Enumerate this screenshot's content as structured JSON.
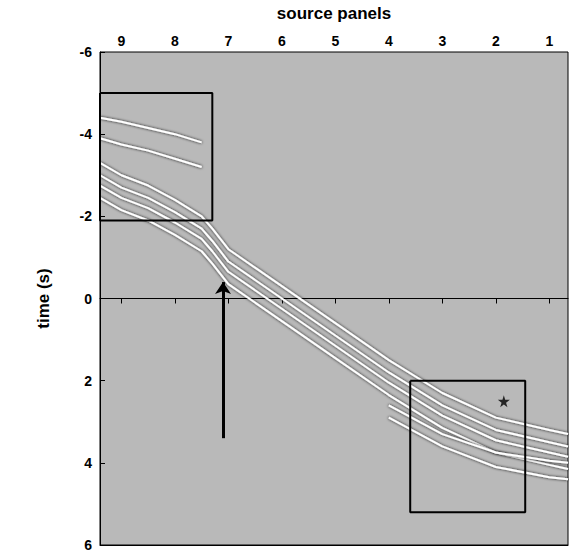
{
  "chart_data": {
    "type": "line",
    "x_axis_label": "source panels",
    "y_axis_label": "time (s)",
    "x": [
      9.4,
      9,
      8.5,
      8,
      7.5,
      7.3,
      7,
      6,
      5,
      4,
      3,
      2,
      1,
      0.65
    ],
    "series": [
      {
        "color": "#ffffff",
        "values": [
          -3.3,
          -3.0,
          -2.75,
          -2.4,
          -2.0,
          -1.7,
          -1.2,
          -0.3,
          0.6,
          1.5,
          2.3,
          2.9,
          3.2,
          3.3
        ]
      },
      {
        "color": "#ffffff",
        "values": [
          -3.0,
          -2.7,
          -2.45,
          -2.1,
          -1.7,
          -1.4,
          -0.9,
          0.0,
          0.9,
          1.8,
          2.6,
          3.2,
          3.5,
          3.6
        ]
      },
      {
        "color": "#ffffff",
        "values": [
          -2.75,
          -2.45,
          -2.2,
          -1.85,
          -1.45,
          -1.15,
          -0.65,
          0.25,
          1.15,
          2.05,
          2.85,
          3.45,
          3.75,
          3.85
        ]
      },
      {
        "color": "#ffffff",
        "values": [
          -2.45,
          -2.15,
          -1.9,
          -1.55,
          -1.15,
          -0.85,
          -0.35,
          0.55,
          1.45,
          2.35,
          3.15,
          3.75,
          4.05,
          4.15
        ]
      },
      {
        "color": "#ffffff",
        "values": [
          -4.4,
          -4.3,
          -4.15,
          -4.0,
          -3.8,
          null,
          null,
          null,
          null,
          null,
          null,
          null,
          null,
          null
        ]
      },
      {
        "color": "#ffffff",
        "values": [
          -3.9,
          -3.75,
          -3.6,
          -3.4,
          -3.2,
          null,
          null,
          null,
          null,
          null,
          null,
          null,
          null,
          null
        ]
      },
      {
        "color": "#ffffff",
        "values": [
          null,
          null,
          null,
          null,
          null,
          null,
          null,
          null,
          null,
          2.6,
          3.3,
          3.75,
          3.95,
          4.0
        ]
      },
      {
        "color": "#ffffff",
        "values": [
          null,
          null,
          null,
          null,
          null,
          null,
          null,
          null,
          null,
          2.9,
          3.6,
          4.1,
          4.35,
          4.4
        ]
      }
    ],
    "xlim": [
      9.4,
      0.65
    ],
    "xticks": [
      9,
      8,
      7,
      6,
      5,
      4,
      3,
      2,
      1
    ],
    "ylim": [
      6,
      -6
    ],
    "yticks": [
      -6,
      -4,
      -2,
      0,
      2,
      4,
      6
    ],
    "grid": false,
    "boxes": [
      {
        "xlim": [
          9.4,
          7.3
        ],
        "ylim": [
          -5,
          -1.9
        ]
      },
      {
        "xlim": [
          3.6,
          1.45
        ],
        "ylim": [
          2,
          5.2
        ]
      }
    ],
    "arrow": {
      "x": 7.1,
      "from": 3.4,
      "to": -0.4
    },
    "points": [
      {
        "x": 1.85,
        "y": 2.5,
        "marker": "star"
      }
    ]
  }
}
